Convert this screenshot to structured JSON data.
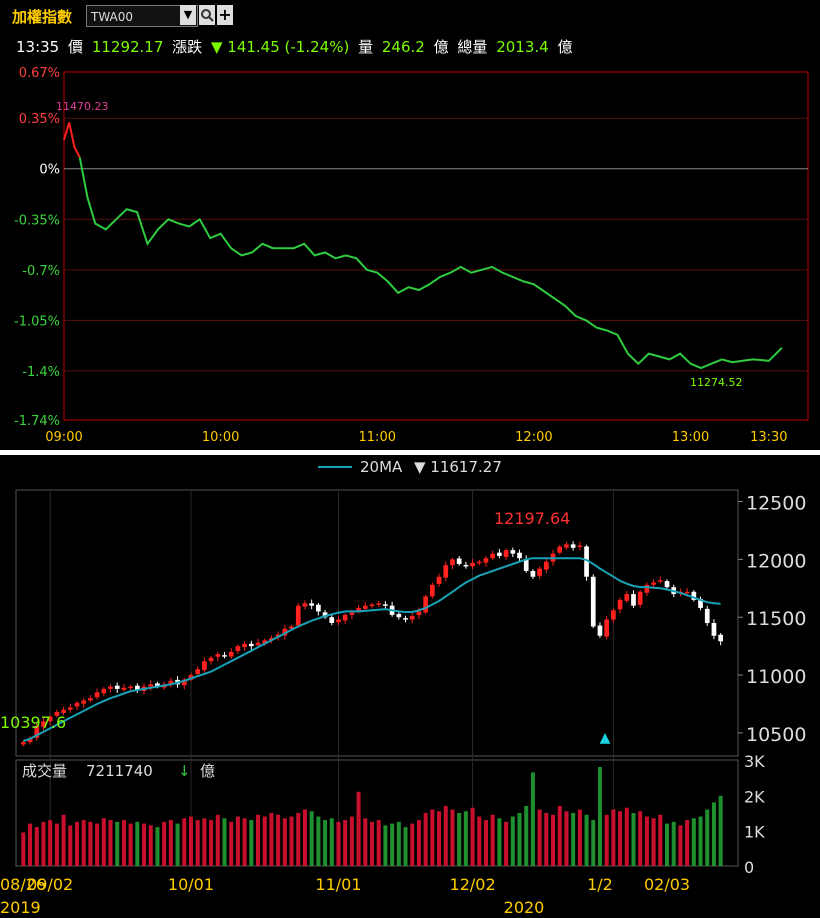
{
  "toolbar": {
    "title": "加權指數",
    "symbol": "TWA00",
    "dropdown_icon": "chevron-down-icon",
    "search_icon": "search-icon",
    "add_icon": "plus-icon"
  },
  "quote": {
    "time": "13:35",
    "price_label": "價",
    "price": "11292.17",
    "change_label": "漲跌",
    "change": "▼ 141.45 (-1.24%)",
    "volume_label": "量",
    "volume": "246.2",
    "volume_unit": "億",
    "total_label": "總量",
    "total": "2013.4",
    "total_unit": "億"
  },
  "colors": {
    "up": "#ff2020",
    "down": "#2ecc40",
    "ma": "#17a2b8",
    "frame_red": "#c00000",
    "axis_yellow": "#ffcc00"
  },
  "chart_data": [
    {
      "type": "line",
      "title": "",
      "y_tick_labels": [
        "0.67%",
        "0.35%",
        "0%",
        "-0.35%",
        "-0.7%",
        "-1.05%",
        "-1.4%",
        "-1.74%"
      ],
      "ylim": [
        -1.74,
        0.67
      ],
      "x_tick_labels": [
        "09:00",
        "10:00",
        "11:00",
        "12:00",
        "13:00",
        "13:30"
      ],
      "annotations": {
        "high_label": "11470.23",
        "low_label": "11274.52"
      },
      "series": [
        {
          "x": [
            "09:00",
            "09:02",
            "09:04",
            "09:06",
            "09:09",
            "09:12",
            "09:16",
            "09:20",
            "09:24",
            "09:28",
            "09:32",
            "09:36",
            "09:40",
            "09:44",
            "09:48",
            "09:52",
            "09:56",
            "10:00",
            "10:04",
            "10:08",
            "10:12",
            "10:16",
            "10:20",
            "10:24",
            "10:28",
            "10:32",
            "10:36",
            "10:40",
            "10:44",
            "10:48",
            "10:52",
            "10:56",
            "11:00",
            "11:04",
            "11:08",
            "11:12",
            "11:16",
            "11:20",
            "11:24",
            "11:28",
            "11:32",
            "11:36",
            "11:40",
            "11:44",
            "11:48",
            "11:52",
            "11:56",
            "12:00",
            "12:04",
            "12:08",
            "12:12",
            "12:16",
            "12:20",
            "12:24",
            "12:28",
            "12:32",
            "12:36",
            "12:40",
            "12:44",
            "12:48",
            "12:52",
            "12:56",
            "13:00",
            "13:04",
            "13:08",
            "13:12",
            "13:16",
            "13:20",
            "13:24",
            "13:30",
            "13:35"
          ],
          "y": [
            0.2,
            0.32,
            0.15,
            0.08,
            -0.2,
            -0.38,
            -0.42,
            -0.35,
            -0.28,
            -0.3,
            -0.52,
            -0.42,
            -0.35,
            -0.38,
            -0.4,
            -0.35,
            -0.48,
            -0.45,
            -0.55,
            -0.6,
            -0.58,
            -0.52,
            -0.55,
            -0.55,
            -0.55,
            -0.52,
            -0.6,
            -0.58,
            -0.62,
            -0.6,
            -0.62,
            -0.7,
            -0.72,
            -0.78,
            -0.86,
            -0.82,
            -0.84,
            -0.8,
            -0.75,
            -0.72,
            -0.68,
            -0.72,
            -0.7,
            -0.68,
            -0.72,
            -0.75,
            -0.78,
            -0.8,
            -0.85,
            -0.9,
            -0.95,
            -1.02,
            -1.05,
            -1.1,
            -1.12,
            -1.15,
            -1.28,
            -1.35,
            -1.28,
            -1.3,
            -1.32,
            -1.28,
            -1.35,
            -1.38,
            -1.35,
            -1.32,
            -1.34,
            -1.33,
            -1.32,
            -1.33,
            -1.24
          ]
        }
      ]
    },
    {
      "type": "candlestick",
      "x_tick_labels": [
        "08/26",
        "09/02",
        "10/01",
        "11/01",
        "12/02",
        "1/2",
        "02/03"
      ],
      "year_labels": [
        "2019",
        "2020"
      ],
      "y_tick_labels": [
        "12500",
        "12000",
        "11500",
        "11000",
        "10500"
      ],
      "ylim": [
        10300,
        12600
      ],
      "ma_label": "20MA",
      "ma_value": "▼ 11617.27",
      "annotations": {
        "high_label": "12197.64",
        "low_label": "10397.6"
      },
      "closes": [
        10420,
        10450,
        10560,
        10600,
        10640,
        10680,
        10700,
        10720,
        10760,
        10780,
        10800,
        10850,
        10880,
        10900,
        10880,
        10890,
        10900,
        10870,
        10900,
        10920,
        10900,
        10920,
        10950,
        10920,
        10960,
        11000,
        11050,
        11120,
        11150,
        11180,
        11160,
        11200,
        11250,
        11270,
        11250,
        11280,
        11300,
        11320,
        11350,
        11400,
        11420,
        11600,
        11620,
        11600,
        11550,
        11500,
        11450,
        11480,
        11520,
        11540,
        11580,
        11600,
        11610,
        11620,
        11600,
        11520,
        11500,
        11480,
        11510,
        11550,
        11680,
        11780,
        11850,
        11950,
        12000,
        11960,
        11940,
        11970,
        11980,
        12010,
        12050,
        12030,
        12080,
        12050,
        12010,
        11900,
        11850,
        11920,
        11980,
        12050,
        12110,
        12130,
        12100,
        12120,
        11850,
        11420,
        11340,
        11480,
        11560,
        11650,
        11700,
        11600,
        11720,
        11780,
        11800,
        11820,
        11760,
        11700,
        11720,
        11720,
        11650,
        11580,
        11450,
        11340,
        11292
      ],
      "ma": [
        10430,
        10450,
        10480,
        10510,
        10540,
        10570,
        10600,
        10630,
        10660,
        10690,
        10720,
        10750,
        10775,
        10800,
        10820,
        10840,
        10860,
        10870,
        10880,
        10890,
        10900,
        10910,
        10920,
        10935,
        10950,
        10970,
        10990,
        11010,
        11030,
        11060,
        11090,
        11120,
        11150,
        11180,
        11210,
        11240,
        11270,
        11300,
        11330,
        11360,
        11390,
        11420,
        11445,
        11470,
        11490,
        11510,
        11525,
        11540,
        11550,
        11550,
        11550,
        11555,
        11560,
        11565,
        11570,
        11560,
        11550,
        11545,
        11545,
        11560,
        11580,
        11610,
        11640,
        11680,
        11720,
        11760,
        11800,
        11830,
        11860,
        11880,
        11900,
        11920,
        11940,
        11960,
        11980,
        12000,
        12010,
        12010,
        12010,
        12010,
        12010,
        12010,
        12010,
        12010,
        11995,
        11960,
        11920,
        11885,
        11850,
        11815,
        11790,
        11770,
        11760,
        11760,
        11755,
        11750,
        11740,
        11725,
        11710,
        11690,
        11670,
        11650,
        11630,
        11620,
        11617
      ],
      "volume_panel": {
        "label": "成交量",
        "value": "7211740",
        "arrow": "↓",
        "unit": "億",
        "y_tick_labels": [
          "3K",
          "2K",
          "1K",
          "0"
        ],
        "ylim": [
          0,
          3000
        ],
        "values": [
          950,
          1200,
          1100,
          1250,
          1300,
          1200,
          1450,
          1150,
          1250,
          1300,
          1250,
          1200,
          1350,
          1300,
          1250,
          1300,
          1200,
          1250,
          1200,
          1150,
          1100,
          1250,
          1300,
          1200,
          1350,
          1400,
          1300,
          1350,
          1300,
          1450,
          1350,
          1250,
          1400,
          1350,
          1300,
          1450,
          1400,
          1500,
          1450,
          1350,
          1400,
          1500,
          1600,
          1550,
          1400,
          1300,
          1350,
          1250,
          1300,
          1400,
          2100,
          1350,
          1250,
          1300,
          1150,
          1200,
          1250,
          1100,
          1200,
          1300,
          1500,
          1600,
          1550,
          1700,
          1600,
          1500,
          1550,
          1650,
          1400,
          1300,
          1450,
          1350,
          1250,
          1400,
          1500,
          1700,
          2650,
          1600,
          1500,
          1450,
          1700,
          1550,
          1500,
          1600,
          1450,
          1300,
          2800,
          1450,
          1600,
          1550,
          1650,
          1500,
          1550,
          1400,
          1350,
          1450,
          1200,
          1250,
          1150,
          1300,
          1350,
          1400,
          1600,
          1800,
          1987
        ]
      },
      "markers": [
        "▲"
      ]
    }
  ]
}
